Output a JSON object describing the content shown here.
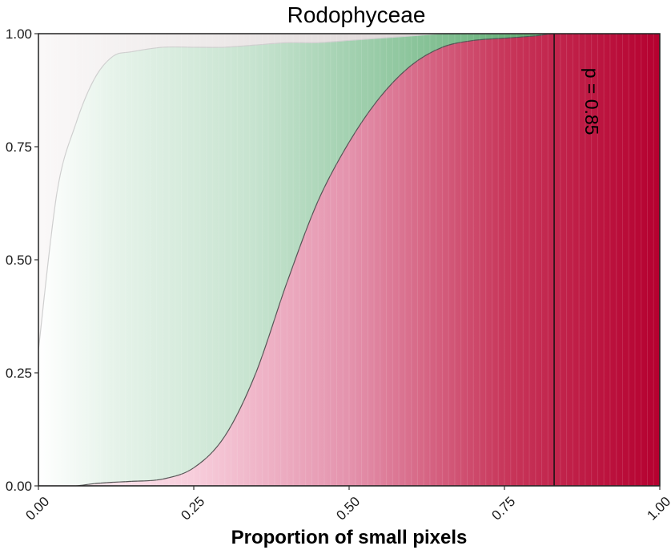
{
  "chart_data": {
    "type": "area",
    "subtype": "stacked conditional density (proportions)",
    "title": "Rodophyceae",
    "xlabel": "Proportion of small pixels",
    "ylabel": "",
    "xlim": [
      0,
      1
    ],
    "ylim": [
      0,
      1
    ],
    "x_ticks": [
      "0.00",
      "0.25",
      "0.50",
      "0.75",
      "1.00"
    ],
    "y_ticks": [
      "0.00",
      "0.25",
      "0.50",
      "0.75",
      "1.00"
    ],
    "grid": false,
    "legend": "none",
    "x": [
      0.0,
      0.03,
      0.06,
      0.09,
      0.12,
      0.15,
      0.2,
      0.25,
      0.3,
      0.35,
      0.4,
      0.45,
      0.5,
      0.55,
      0.6,
      0.65,
      0.7,
      0.75,
      0.8,
      0.83,
      0.9,
      1.0
    ],
    "series": [
      {
        "color": "#b5002f",
        "boundary": [
          0.0,
          0.0,
          0.0,
          0.005,
          0.008,
          0.01,
          0.015,
          0.04,
          0.11,
          0.25,
          0.45,
          0.63,
          0.76,
          0.86,
          0.93,
          0.97,
          0.985,
          0.99,
          0.995,
          1.0,
          1.0,
          1.0
        ]
      },
      {
        "color": "#6ab07a",
        "boundary": [
          0.0,
          0.02,
          0.03,
          0.04,
          0.02,
          0.02,
          0.02,
          0.05,
          0.11,
          0.25,
          0.45,
          0.63,
          0.76,
          0.86,
          0.93,
          0.97,
          0.985,
          0.99,
          0.995,
          1.0,
          1.0,
          1.0
        ],
        "upper": [
          0.3,
          0.65,
          0.8,
          0.9,
          0.95,
          0.96,
          0.97,
          0.97,
          0.97,
          0.975,
          0.98,
          0.98,
          0.985,
          0.99,
          0.995,
          1.0,
          1.0,
          1.0,
          1.0,
          1.0,
          1.0,
          1.0
        ]
      },
      {
        "color": "#f2f2a0"
      },
      {
        "color": "#b8a8a8"
      }
    ],
    "vline": {
      "x": 0.83
    },
    "annotation": {
      "text": "p = 0.85",
      "x": 0.88,
      "y": 0.85,
      "rotation": 90
    }
  }
}
